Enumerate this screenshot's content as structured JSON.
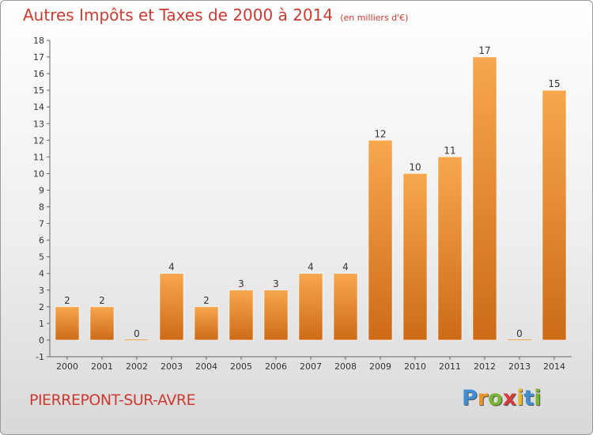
{
  "chart_data": {
    "type": "bar",
    "title": "Autres Impôts et Taxes de 2000 à 2014",
    "unit_label": "(en milliers d'€)",
    "categories": [
      "2000",
      "2001",
      "2002",
      "2003",
      "2004",
      "2005",
      "2006",
      "2007",
      "2008",
      "2009",
      "2010",
      "2011",
      "2012",
      "2013",
      "2014"
    ],
    "values": [
      2,
      2,
      0,
      4,
      2,
      3,
      3,
      4,
      4,
      12,
      10,
      11,
      17,
      0,
      15
    ],
    "data_labels": [
      "2",
      "2",
      "0",
      "4",
      "2",
      "3",
      "3",
      "4",
      "4",
      "12",
      "10",
      "11",
      "17",
      "0",
      "15"
    ],
    "ylim": [
      -1,
      18
    ],
    "yticks": [
      "-1",
      "0",
      "1",
      "2",
      "3",
      "4",
      "5",
      "6",
      "7",
      "8",
      "9",
      "10",
      "11",
      "12",
      "13",
      "14",
      "15",
      "16",
      "17",
      "18"
    ],
    "grid": false,
    "colors": {
      "bar_light": "#f7a74f",
      "bar_dark": "#cd6b17",
      "axis": "#666666",
      "text": "#333333"
    }
  },
  "footer": {
    "commune": "PIERREPONT-SUR-AVRE"
  },
  "logo": {
    "letters": [
      "P",
      "r",
      "o",
      "x",
      "i",
      "t",
      "i"
    ],
    "colors": [
      "#3d8fd6",
      "#e8962b",
      "#7ab532",
      "#d63a3a",
      "#e8b92b",
      "#3d8fd6",
      "#7ab532"
    ]
  }
}
